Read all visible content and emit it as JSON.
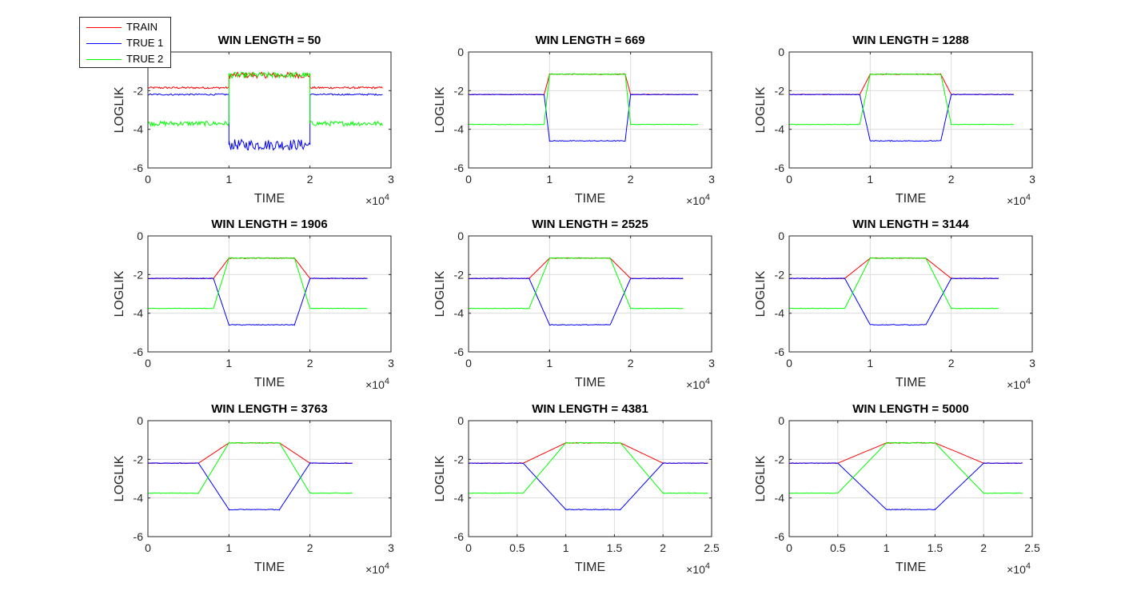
{
  "figure": {
    "legend": [
      {
        "label": "TRAIN",
        "color": "#ff0000"
      },
      {
        "label": "TRUE 1",
        "color": "#0000ff"
      },
      {
        "label": "TRUE 2",
        "color": "#00ff00"
      }
    ]
  },
  "chart_data": [
    {
      "type": "line",
      "title": "WIN LENGTH = 50",
      "xlabel": "TIME",
      "ylabel": "LOGLIK",
      "xlim": [
        0,
        30000
      ],
      "ylim": [
        -6,
        0
      ],
      "xticks": [
        "0",
        "1",
        "2",
        "3"
      ],
      "yticks": [
        "-6",
        "-4",
        "-2",
        "0"
      ],
      "x_exponent": "4",
      "grid": false,
      "series": [
        {
          "name": "TRAIN",
          "color": "#ff0000",
          "x": [
            0,
            10000,
            10000,
            20000,
            20000,
            28950
          ],
          "y": [
            -1.85,
            -1.85,
            -1.2,
            -1.2,
            -1.85,
            -1.85
          ]
        },
        {
          "name": "TRUE 1",
          "color": "#0000ff",
          "x": [
            0,
            10000,
            10000,
            20000,
            20000,
            28950
          ],
          "y": [
            -2.2,
            -2.2,
            -4.8,
            -4.8,
            -2.2,
            -2.2
          ]
        },
        {
          "name": "TRUE 2",
          "color": "#00ff00",
          "x": [
            0,
            10000,
            10000,
            20000,
            20000,
            28950
          ],
          "y": [
            -3.7,
            -3.7,
            -1.2,
            -1.2,
            -3.7,
            -3.7
          ]
        }
      ]
    },
    {
      "type": "line",
      "title": "WIN LENGTH = 669",
      "xlabel": "TIME",
      "ylabel": "LOGLIK",
      "xlim": [
        0,
        30000
      ],
      "ylim": [
        -6,
        0
      ],
      "xticks": [
        "0",
        "1",
        "2",
        "3"
      ],
      "yticks": [
        "-6",
        "-4",
        "-2",
        "0"
      ],
      "x_exponent": "4",
      "grid": true,
      "series": [
        {
          "name": "TRAIN",
          "color": "#ff0000",
          "x": [
            0,
            9330,
            10000,
            19330,
            20000,
            28330
          ],
          "y": [
            -2.2,
            -2.2,
            -1.15,
            -1.15,
            -2.2,
            -2.2
          ]
        },
        {
          "name": "TRUE 1",
          "color": "#0000ff",
          "x": [
            0,
            9330,
            10000,
            19330,
            20000,
            28330
          ],
          "y": [
            -2.2,
            -2.2,
            -4.6,
            -4.6,
            -2.2,
            -2.2
          ]
        },
        {
          "name": "TRUE 2",
          "color": "#00ff00",
          "x": [
            0,
            9330,
            10000,
            19330,
            20000,
            28330
          ],
          "y": [
            -3.75,
            -3.75,
            -1.15,
            -1.15,
            -3.75,
            -3.75
          ]
        }
      ]
    },
    {
      "type": "line",
      "title": "WIN LENGTH = 1288",
      "xlabel": "TIME",
      "ylabel": "LOGLIK",
      "xlim": [
        0,
        30000
      ],
      "ylim": [
        -6,
        0
      ],
      "xticks": [
        "0",
        "1",
        "2",
        "3"
      ],
      "yticks": [
        "-6",
        "-4",
        "-2",
        "0"
      ],
      "x_exponent": "4",
      "grid": true,
      "series": [
        {
          "name": "TRAIN",
          "color": "#ff0000",
          "x": [
            0,
            8710,
            10000,
            18710,
            20000,
            27710
          ],
          "y": [
            -2.2,
            -2.2,
            -1.15,
            -1.15,
            -2.2,
            -2.2
          ]
        },
        {
          "name": "TRUE 1",
          "color": "#0000ff",
          "x": [
            0,
            8710,
            10000,
            18710,
            20000,
            27710
          ],
          "y": [
            -2.2,
            -2.2,
            -4.6,
            -4.6,
            -2.2,
            -2.2
          ]
        },
        {
          "name": "TRUE 2",
          "color": "#00ff00",
          "x": [
            0,
            8710,
            10000,
            18710,
            20000,
            27710
          ],
          "y": [
            -3.75,
            -3.75,
            -1.15,
            -1.15,
            -3.75,
            -3.75
          ]
        }
      ]
    },
    {
      "type": "line",
      "title": "WIN LENGTH = 1906",
      "xlabel": "TIME",
      "ylabel": "LOGLIK",
      "xlim": [
        0,
        30000
      ],
      "ylim": [
        -6,
        0
      ],
      "xticks": [
        "0",
        "1",
        "2",
        "3"
      ],
      "yticks": [
        "-6",
        "-4",
        "-2",
        "0"
      ],
      "x_exponent": "4",
      "grid": true,
      "series": [
        {
          "name": "TRAIN",
          "color": "#ff0000",
          "x": [
            0,
            8090,
            10000,
            18090,
            20000,
            27090
          ],
          "y": [
            -2.2,
            -2.2,
            -1.15,
            -1.15,
            -2.2,
            -2.2
          ]
        },
        {
          "name": "TRUE 1",
          "color": "#0000ff",
          "x": [
            0,
            8090,
            10000,
            18090,
            20000,
            27090
          ],
          "y": [
            -2.2,
            -2.2,
            -4.6,
            -4.6,
            -2.2,
            -2.2
          ]
        },
        {
          "name": "TRUE 2",
          "color": "#00ff00",
          "x": [
            0,
            8090,
            10000,
            18090,
            20000,
            27090
          ],
          "y": [
            -3.75,
            -3.75,
            -1.15,
            -1.15,
            -3.75,
            -3.75
          ]
        }
      ]
    },
    {
      "type": "line",
      "title": "WIN LENGTH = 2525",
      "xlabel": "TIME",
      "ylabel": "LOGLIK",
      "xlim": [
        0,
        30000
      ],
      "ylim": [
        -6,
        0
      ],
      "xticks": [
        "0",
        "1",
        "2",
        "3"
      ],
      "yticks": [
        "-6",
        "-4",
        "-2",
        "0"
      ],
      "x_exponent": "4",
      "grid": true,
      "series": [
        {
          "name": "TRAIN",
          "color": "#ff0000",
          "x": [
            0,
            7480,
            10000,
            17480,
            20000,
            26480
          ],
          "y": [
            -2.2,
            -2.2,
            -1.15,
            -1.15,
            -2.2,
            -2.2
          ]
        },
        {
          "name": "TRUE 1",
          "color": "#0000ff",
          "x": [
            0,
            7480,
            10000,
            17480,
            20000,
            26480
          ],
          "y": [
            -2.2,
            -2.2,
            -4.6,
            -4.6,
            -2.2,
            -2.2
          ]
        },
        {
          "name": "TRUE 2",
          "color": "#00ff00",
          "x": [
            0,
            7480,
            10000,
            17480,
            20000,
            26480
          ],
          "y": [
            -3.75,
            -3.75,
            -1.15,
            -1.15,
            -3.75,
            -3.75
          ]
        }
      ]
    },
    {
      "type": "line",
      "title": "WIN LENGTH = 3144",
      "xlabel": "TIME",
      "ylabel": "LOGLIK",
      "xlim": [
        0,
        30000
      ],
      "ylim": [
        -6,
        0
      ],
      "xticks": [
        "0",
        "1",
        "2",
        "3"
      ],
      "yticks": [
        "-6",
        "-4",
        "-2",
        "0"
      ],
      "x_exponent": "4",
      "grid": true,
      "series": [
        {
          "name": "TRAIN",
          "color": "#ff0000",
          "x": [
            0,
            6860,
            10000,
            16860,
            20000,
            25860
          ],
          "y": [
            -2.2,
            -2.2,
            -1.15,
            -1.15,
            -2.2,
            -2.2
          ]
        },
        {
          "name": "TRUE 1",
          "color": "#0000ff",
          "x": [
            0,
            6860,
            10000,
            16860,
            20000,
            25860
          ],
          "y": [
            -2.2,
            -2.2,
            -4.6,
            -4.6,
            -2.2,
            -2.2
          ]
        },
        {
          "name": "TRUE 2",
          "color": "#00ff00",
          "x": [
            0,
            6860,
            10000,
            16860,
            20000,
            25860
          ],
          "y": [
            -3.75,
            -3.75,
            -1.15,
            -1.15,
            -3.75,
            -3.75
          ]
        }
      ]
    },
    {
      "type": "line",
      "title": "WIN LENGTH = 3763",
      "xlabel": "TIME",
      "ylabel": "LOGLIK",
      "xlim": [
        0,
        30000
      ],
      "ylim": [
        -6,
        0
      ],
      "xticks": [
        "0",
        "1",
        "2",
        "3"
      ],
      "yticks": [
        "-6",
        "-4",
        "-2",
        "0"
      ],
      "x_exponent": "4",
      "grid": true,
      "series": [
        {
          "name": "TRAIN",
          "color": "#ff0000",
          "x": [
            0,
            6240,
            10000,
            16240,
            20000,
            25240
          ],
          "y": [
            -2.2,
            -2.2,
            -1.15,
            -1.15,
            -2.2,
            -2.2
          ]
        },
        {
          "name": "TRUE 1",
          "color": "#0000ff",
          "x": [
            0,
            6240,
            10000,
            16240,
            20000,
            25240
          ],
          "y": [
            -2.2,
            -2.2,
            -4.6,
            -4.6,
            -2.2,
            -2.2
          ]
        },
        {
          "name": "TRUE 2",
          "color": "#00ff00",
          "x": [
            0,
            6240,
            10000,
            16240,
            20000,
            25240
          ],
          "y": [
            -3.75,
            -3.75,
            -1.15,
            -1.15,
            -3.75,
            -3.75
          ]
        }
      ]
    },
    {
      "type": "line",
      "title": "WIN LENGTH = 4381",
      "xlabel": "TIME",
      "ylabel": "LOGLIK",
      "xlim": [
        0,
        25000
      ],
      "ylim": [
        -6,
        0
      ],
      "xticks": [
        "0",
        "0.5",
        "1",
        "1.5",
        "2",
        "2.5"
      ],
      "yticks": [
        "-6",
        "-4",
        "-2",
        "0"
      ],
      "x_exponent": "4",
      "grid": true,
      "series": [
        {
          "name": "TRAIN",
          "color": "#ff0000",
          "x": [
            0,
            5620,
            10000,
            15620,
            20000,
            24620
          ],
          "y": [
            -2.2,
            -2.2,
            -1.15,
            -1.15,
            -2.2,
            -2.2
          ]
        },
        {
          "name": "TRUE 1",
          "color": "#0000ff",
          "x": [
            0,
            5620,
            10000,
            15620,
            20000,
            24620
          ],
          "y": [
            -2.2,
            -2.2,
            -4.6,
            -4.6,
            -2.2,
            -2.2
          ]
        },
        {
          "name": "TRUE 2",
          "color": "#00ff00",
          "x": [
            0,
            5620,
            10000,
            15620,
            20000,
            24620
          ],
          "y": [
            -3.75,
            -3.75,
            -1.15,
            -1.15,
            -3.75,
            -3.75
          ]
        }
      ]
    },
    {
      "type": "line",
      "title": "WIN LENGTH = 5000",
      "xlabel": "TIME",
      "ylabel": "LOGLIK",
      "xlim": [
        0,
        25000
      ],
      "ylim": [
        -6,
        0
      ],
      "xticks": [
        "0",
        "0.5",
        "1",
        "1.5",
        "2",
        "2.5"
      ],
      "yticks": [
        "-6",
        "-4",
        "-2",
        "0"
      ],
      "x_exponent": "4",
      "grid": true,
      "series": [
        {
          "name": "TRAIN",
          "color": "#ff0000",
          "x": [
            0,
            5000,
            10000,
            15000,
            20000,
            24000
          ],
          "y": [
            -2.2,
            -2.2,
            -1.15,
            -1.15,
            -2.2,
            -2.2
          ]
        },
        {
          "name": "TRUE 1",
          "color": "#0000ff",
          "x": [
            0,
            5000,
            10000,
            15000,
            20000,
            24000
          ],
          "y": [
            -2.2,
            -2.2,
            -4.6,
            -4.6,
            -2.2,
            -2.2
          ]
        },
        {
          "name": "TRUE 2",
          "color": "#00ff00",
          "x": [
            0,
            5000,
            10000,
            15000,
            20000,
            24000
          ],
          "y": [
            -3.75,
            -3.75,
            -1.15,
            -1.15,
            -3.75,
            -3.75
          ]
        }
      ]
    }
  ]
}
